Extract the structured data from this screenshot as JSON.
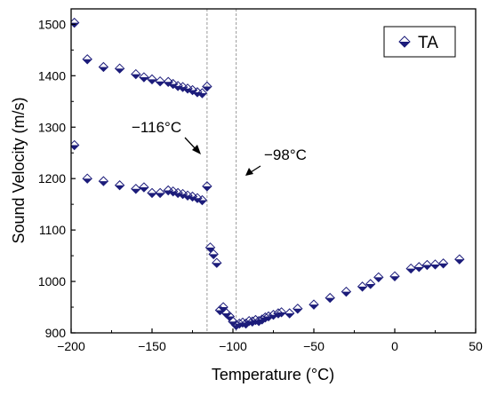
{
  "chart_data": {
    "type": "scatter",
    "xlabel": "Temperature (°C)",
    "ylabel": "Sound Velocity (m/s)",
    "xlim": [
      -200,
      50
    ],
    "ylim": [
      900,
      1530
    ],
    "xticks": [
      -200,
      -150,
      -100,
      -50,
      0,
      50
    ],
    "yticks": [
      900,
      1000,
      1100,
      1200,
      1300,
      1400,
      1500
    ],
    "xtick_labels": [
      "−200",
      "−150",
      "−100",
      "−50",
      "0",
      "50"
    ],
    "ytick_labels": [
      "900",
      "1000",
      "1100",
      "1200",
      "1300",
      "1400",
      "1500"
    ],
    "grid": false,
    "legend_position": "top-right",
    "reference_lines_x": [
      -116,
      -98
    ],
    "annotations": [
      {
        "text": "−116°C",
        "x": -116,
        "y": 1250
      },
      {
        "text": "−98°C",
        "x": -98,
        "y": 1250
      }
    ],
    "series": [
      {
        "name": "TA",
        "color": "#1c1c7a",
        "marker": "half-filled-diamond",
        "points": [
          {
            "x": -198,
            "y": 1503
          },
          {
            "x": -190,
            "y": 1432
          },
          {
            "x": -180,
            "y": 1417
          },
          {
            "x": -170,
            "y": 1414
          },
          {
            "x": -160,
            "y": 1403
          },
          {
            "x": -155,
            "y": 1397
          },
          {
            "x": -150,
            "y": 1393
          },
          {
            "x": -145,
            "y": 1389
          },
          {
            "x": -140,
            "y": 1388
          },
          {
            "x": -137,
            "y": 1384
          },
          {
            "x": -134,
            "y": 1380
          },
          {
            "x": -131,
            "y": 1378
          },
          {
            "x": -128,
            "y": 1375
          },
          {
            "x": -125,
            "y": 1372
          },
          {
            "x": -122,
            "y": 1368
          },
          {
            "x": -119,
            "y": 1366
          },
          {
            "x": -116,
            "y": 1379
          },
          {
            "x": -198,
            "y": 1265
          },
          {
            "x": -190,
            "y": 1200
          },
          {
            "x": -180,
            "y": 1195
          },
          {
            "x": -170,
            "y": 1187
          },
          {
            "x": -160,
            "y": 1180
          },
          {
            "x": -155,
            "y": 1183
          },
          {
            "x": -150,
            "y": 1172
          },
          {
            "x": -145,
            "y": 1172
          },
          {
            "x": -140,
            "y": 1177
          },
          {
            "x": -137,
            "y": 1175
          },
          {
            "x": -134,
            "y": 1172
          },
          {
            "x": -131,
            "y": 1170
          },
          {
            "x": -128,
            "y": 1167
          },
          {
            "x": -125,
            "y": 1165
          },
          {
            "x": -122,
            "y": 1162
          },
          {
            "x": -119,
            "y": 1158
          },
          {
            "x": -116,
            "y": 1185
          },
          {
            "x": -114,
            "y": 1066
          },
          {
            "x": -112,
            "y": 1053
          },
          {
            "x": -110,
            "y": 1036
          },
          {
            "x": -108,
            "y": 944
          },
          {
            "x": -106,
            "y": 950
          },
          {
            "x": -104,
            "y": 938
          },
          {
            "x": -102,
            "y": 932
          },
          {
            "x": -100,
            "y": 922
          },
          {
            "x": -98,
            "y": 915
          },
          {
            "x": -96,
            "y": 918
          },
          {
            "x": -94,
            "y": 920
          },
          {
            "x": -92,
            "y": 918
          },
          {
            "x": -90,
            "y": 923
          },
          {
            "x": -88,
            "y": 922
          },
          {
            "x": -86,
            "y": 925
          },
          {
            "x": -84,
            "y": 923
          },
          {
            "x": -82,
            "y": 926
          },
          {
            "x": -80,
            "y": 930
          },
          {
            "x": -78,
            "y": 932
          },
          {
            "x": -75,
            "y": 935
          },
          {
            "x": -72,
            "y": 938
          },
          {
            "x": -70,
            "y": 940
          },
          {
            "x": -65,
            "y": 938
          },
          {
            "x": -60,
            "y": 947
          },
          {
            "x": -50,
            "y": 955
          },
          {
            "x": -40,
            "y": 968
          },
          {
            "x": -30,
            "y": 980
          },
          {
            "x": -20,
            "y": 990
          },
          {
            "x": -15,
            "y": 995
          },
          {
            "x": -10,
            "y": 1008
          },
          {
            "x": 0,
            "y": 1010
          },
          {
            "x": 10,
            "y": 1025
          },
          {
            "x": 15,
            "y": 1028
          },
          {
            "x": 20,
            "y": 1032
          },
          {
            "x": 25,
            "y": 1033
          },
          {
            "x": 30,
            "y": 1035
          },
          {
            "x": 40,
            "y": 1043
          }
        ]
      }
    ]
  }
}
